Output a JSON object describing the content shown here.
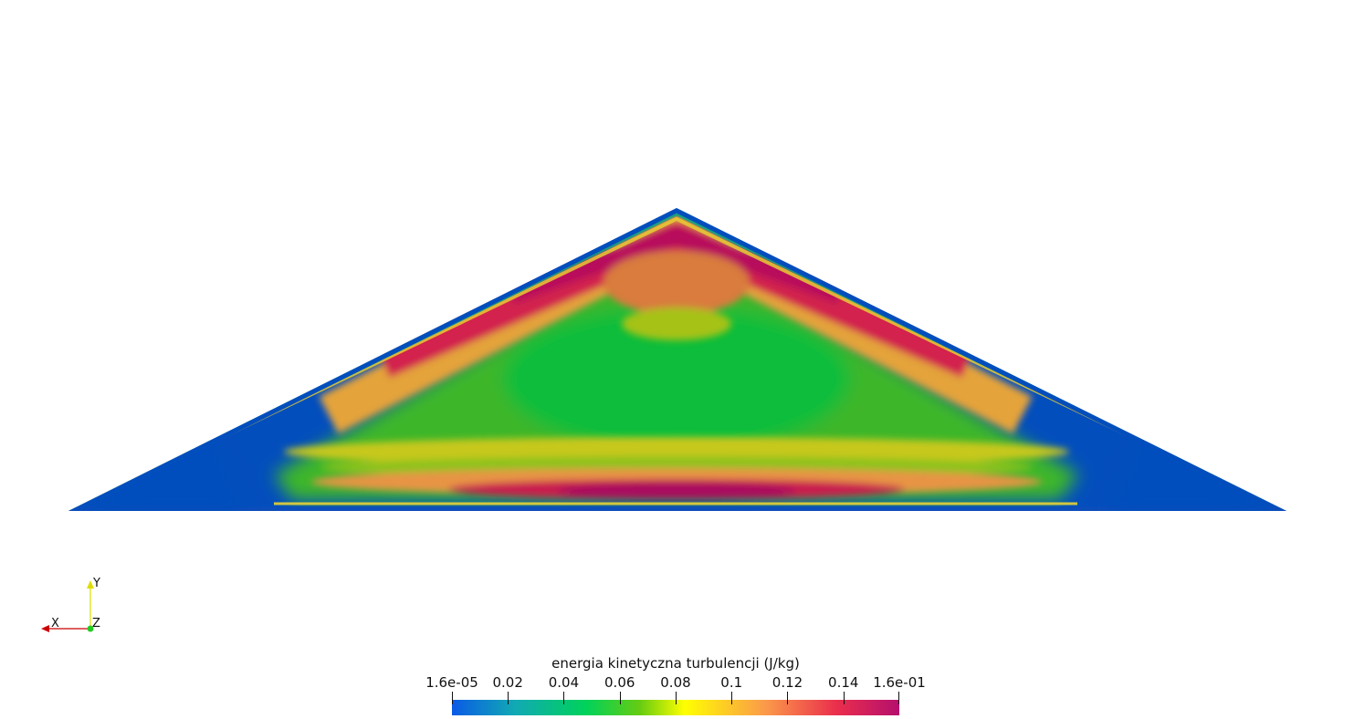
{
  "colorbar": {
    "title": "energia kinetyczna turbulencji (J/kg)",
    "ticks": [
      "1.6e-05",
      "0.02",
      "0.04",
      "0.06",
      "0.08",
      "0.1",
      "0.12",
      "0.14",
      "1.6e-01"
    ],
    "tick_values": [
      1.6e-05,
      0.02,
      0.04,
      0.06,
      0.08,
      0.1,
      0.12,
      0.14,
      0.16
    ],
    "range": [
      1.6e-05,
      0.16
    ],
    "colors": [
      "#0a5ae6",
      "#11a9b4",
      "#00d25a",
      "#66cc11",
      "#ffff00",
      "#fb9a4a",
      "#ea2e4c",
      "#b50f6e"
    ]
  },
  "axes": {
    "x_label": "X",
    "y_label": "Y",
    "z_label": "Z",
    "x_color": "#cc0000",
    "y_color": "#dddd00",
    "z_color": "#22cc22"
  },
  "field": {
    "boundary_color": "#034ebd",
    "core_color": "#10bd3a"
  }
}
